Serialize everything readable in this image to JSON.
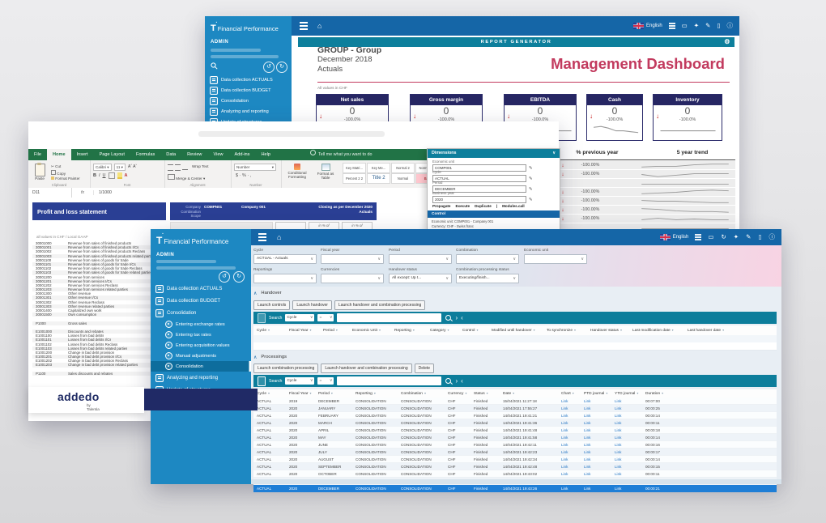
{
  "dashboard": {
    "sidebar": {
      "brand": "Financial Performance",
      "user": "ADMIN",
      "items": [
        "Data collection ACTUALS",
        "Data collection BUDGET",
        "Consolidation",
        "Analyzing and reporting",
        "Update of structures"
      ]
    },
    "topbar": {
      "language": "English",
      "icons": [
        "display-icon",
        "pin-icon",
        "edit-icon",
        "mobile-icon",
        "info-icon"
      ]
    },
    "banner": {
      "title": "REPORT GENERATOR",
      "gear_icon": "gear-icon"
    },
    "report": {
      "line1": "GROUP - Group",
      "line2": "December 2018",
      "line3": "Actuals",
      "title": "Management Dashboard",
      "note": "All values in CHF",
      "kpis": [
        {
          "label": "Net sales",
          "value": "0",
          "change": "-100.0%",
          "arrow": "↓",
          "spark": "2,6 12,5 22,6 32,6 42,7 52,7 58,7"
        },
        {
          "label": "Gross margin",
          "value": "0",
          "change": "-100.0%",
          "arrow": "↓",
          "spark": "2,5 12,6 22,5 32,6 42,6 52,7 58,7"
        },
        {
          "label": "EBITDA",
          "value": "0",
          "change": "-100.0%",
          "arrow": "↓",
          "spark": "2,6 12,6 22,5 32,6 42,7 52,7 58,7"
        },
        {
          "label": "Cash",
          "value": "0",
          "change": "-100.0%",
          "arrow": "↓",
          "spark": "2,3 11,2 20,4 29,7 38,7 47,8 56,9"
        },
        {
          "label": "Inventory",
          "value": "0",
          "change": "-100.0%",
          "arrow": "↓",
          "spark": "2,7 11,7 20,7 29,7 38,7 47,7 56,7"
        }
      ]
    },
    "trend": {
      "col1": "% previous year",
      "col2": "5 year trend",
      "rows": [
        {
          "arrow": "↓",
          "pct": "-100.00%",
          "spark": "2,7 20,6 40,6 60,4 80,3 98,3"
        },
        {
          "arrow": "↓",
          "pct": "-100.00%",
          "spark": "2,5 20,8 40,6 60,4 80,4 98,4"
        },
        {
          "arrow": "",
          "pct": "",
          "spark": "2,6 20,6 40,6 60,6 80,6 98,6"
        },
        {
          "arrow": "↓",
          "pct": "-100.00%",
          "spark": "2,7 20,6 40,5 60,3 80,2 98,3"
        },
        {
          "arrow": "↓",
          "pct": "-100.00%",
          "spark": "2,4 20,5 40,5 60,6 80,7 98,7"
        },
        {
          "arrow": "↓",
          "pct": "-100.00%",
          "spark": "2,3 20,4 40,6 60,7 80,7 98,8"
        },
        {
          "arrow": "↓",
          "pct": "-100.00%",
          "spark": "2,6 20,4 40,6 60,5 80,6 98,6"
        },
        {
          "arrow": "",
          "pct": "",
          "spark": "2,6 20,6 40,6 60,6 80,6 98,6"
        }
      ]
    },
    "taskpane": {
      "title": "Dimensions",
      "fields": [
        {
          "label": "Economic unit",
          "value": "COMP001"
        },
        {
          "label": "Cycle",
          "value": "ACTUAL"
        },
        {
          "label": "Period",
          "value": "DECEMBER"
        },
        {
          "label": "Business year",
          "value": "2020"
        }
      ],
      "actions": [
        "Propagate",
        "Execute",
        "Duplicate",
        "|",
        "Modules.call"
      ],
      "control_title": "Control",
      "control_lines": [
        "Economic unit: COMP001 - Company 001",
        "Currency: CHF - Swiss franc"
      ]
    }
  },
  "excel": {
    "tabs": [
      "File",
      "Home",
      "Insert",
      "Page Layout",
      "Formulas",
      "Data",
      "Review",
      "View",
      "Add-ins",
      "Help"
    ],
    "tellme": "Tell me what you want to do",
    "clipboard": {
      "paste": "Paste",
      "cut": "Cut",
      "copy": "Copy",
      "painter": "Format Painter",
      "label": "Clipboard"
    },
    "font": {
      "name": "Calibri",
      "size": "11",
      "label": "Font"
    },
    "align": {
      "wrap": "Wrap Text",
      "merge": "Merge & Center",
      "label": "Alignment"
    },
    "number": {
      "format": "Number",
      "symbols": "$ · % · ,",
      "label": "Number"
    },
    "styles": {
      "cond": "Conditional Formatting",
      "table": "Format as Table",
      "gallery1": [
        "Key Matri...",
        "Key Me...",
        "Normal 2",
        "Normal 2 2",
        "Percent 2"
      ],
      "gallery2": [
        "Percent 2 2",
        "Title 2",
        "Normal",
        "Bad",
        "Good"
      ]
    },
    "name_box": "D11",
    "formula": "1/1000",
    "sheet": {
      "title": "Profit and loss statement",
      "labels": [
        "Company",
        "Combination",
        "Scope"
      ],
      "company_code": "COMPN01",
      "company_name": "Company 001",
      "closing": "Closing as per December 2020",
      "scenario": "Actuals",
      "pct_col1": "in % of",
      "pct_col2": "in % of",
      "note": "all values in CHF / Local GAAP",
      "rows": [
        {
          "code": "30001000",
          "desc": "Revenue from sales of finished products"
        },
        {
          "code": "30001001",
          "desc": "Revenue from sales of finished products I/Cs"
        },
        {
          "code": "30001002",
          "desc": "Revenue from sales of finished products Reclass"
        },
        {
          "code": "30001003",
          "desc": "Revenue from sales of finished products related parties"
        },
        {
          "code": "30001100",
          "desc": "Revenue from sales of goods for trade"
        },
        {
          "code": "30001101",
          "desc": "Revenue from sales of goods for trade I/Cs"
        },
        {
          "code": "30001102",
          "desc": "Revenue from sales of goods for trade Reclass"
        },
        {
          "code": "30001103",
          "desc": "Revenue from sales of goods for trade related parties"
        },
        {
          "code": "30001200",
          "desc": "Revenue from services"
        },
        {
          "code": "30001201",
          "desc": "Revenue from services I/Cs"
        },
        {
          "code": "30001202",
          "desc": "Revenue from services Reclass"
        },
        {
          "code": "30001203",
          "desc": "Revenue from services related parties"
        },
        {
          "code": "30001300",
          "desc": "Other revenue"
        },
        {
          "code": "30001301",
          "desc": "Other revenue I/Cs"
        },
        {
          "code": "30001302",
          "desc": "Other revenue Reclass"
        },
        {
          "code": "30001303",
          "desc": "Other revenue related parties"
        },
        {
          "code": "30001400",
          "desc": "Capitalized own work"
        },
        {
          "code": "30001500",
          "desc": "Own consumption"
        },
        {
          "code": "",
          "desc": ""
        },
        {
          "code": "P1000",
          "desc": "Gross sales"
        },
        {
          "code": "",
          "desc": ""
        },
        {
          "code": "E1001000",
          "desc": "Discounts and rebates"
        },
        {
          "code": "E1001100",
          "desc": "Losses from bad debts"
        },
        {
          "code": "E1001101",
          "desc": "Losses from bad debts I/Cs"
        },
        {
          "code": "E1001102",
          "desc": "Losses from bad debts Reclass"
        },
        {
          "code": "E1001103",
          "desc": "Losses from bad debts related parties"
        },
        {
          "code": "E1001200",
          "desc": "Change in bad debt provision"
        },
        {
          "code": "E1001201",
          "desc": "Change in bad debt provision I/Cs"
        },
        {
          "code": "E1001202",
          "desc": "Change in bad debt provision Reclass"
        },
        {
          "code": "E1001203",
          "desc": "Change in bad debt provision related parties"
        },
        {
          "code": "",
          "desc": ""
        },
        {
          "code": "P1100",
          "desc": "Sales discounts and rebates"
        }
      ]
    },
    "logo": {
      "name": "addedo",
      "by": "by Talentia"
    }
  },
  "consol": {
    "sidebar": {
      "brand": "Financial Performance",
      "user": "ADMIN",
      "items": [
        "Data collection ACTUALS",
        "Data collection BUDGET",
        "Consolidation"
      ],
      "subs": [
        "Entering exchange rates",
        "Entering tax rates",
        "Entering acquisition values",
        "Manual adjustments",
        "Consolidation"
      ],
      "items2": [
        "Analyzing and reporting",
        "Update of structures"
      ]
    },
    "topbar": {
      "language": "English",
      "icons": [
        "display-icon",
        "refresh-icon",
        "pin-icon",
        "edit-icon",
        "mobile-icon",
        "info-icon"
      ]
    },
    "filters1": [
      {
        "label": "Cycle",
        "value": "ACTUAL - Actuals"
      },
      {
        "label": "Fiscal year",
        "value": ""
      },
      {
        "label": "Period",
        "value": ""
      },
      {
        "label": "Combination",
        "value": ""
      },
      {
        "label": "Economic unit",
        "value": ""
      }
    ],
    "filters2": [
      {
        "label": "Reportings",
        "value": ""
      },
      {
        "label": "Currencies",
        "value": ""
      },
      {
        "label": "Handover status",
        "value": "All except: Up t..."
      },
      {
        "label": "Combination processing status",
        "value": "Executing/finish..."
      }
    ],
    "handover": {
      "title": "Handover",
      "buttons": [
        "Launch controls",
        "Launch handover",
        "Launch handover and combination processing"
      ],
      "search_label": "Search",
      "search_field": "Cycle",
      "search_op": "=",
      "columns": [
        "Cycle",
        "Fiscal Year",
        "Period",
        "Economic Unit",
        "Reporting",
        "Category",
        "Control",
        "Modified until handover",
        "To synchronize",
        "Handover status",
        "Last modification date",
        "Last handover date"
      ]
    },
    "processings": {
      "title": "Processings",
      "buttons": [
        "Launch combination processing",
        "Launch handover and combination processing",
        "Delete"
      ],
      "search_label": "Search",
      "search_field": "Cycle",
      "search_op": "=",
      "columns": [
        "Cycle",
        "Fiscal Year",
        "Period",
        "Reporting",
        "Combination",
        "Currency",
        "Status",
        "Date",
        "Chart",
        "PTD journal",
        "YTD journal",
        "Duration"
      ],
      "rows": [
        [
          "ACTUAL",
          "2019",
          "DECEMBER",
          "CONSOLIDATION",
          "CONSOLIDATION",
          "CHF",
          "Finished",
          "15/04/2021 11:27:18",
          "Link",
          "Link",
          "Link",
          "00:07:00"
        ],
        [
          "ACTUAL",
          "2020",
          "JANUARY",
          "CONSOLIDATION",
          "CONSOLIDATION",
          "CHF",
          "Finished",
          "14/04/2021 17:55:27",
          "Link",
          "Link",
          "Link",
          "00:00:25"
        ],
        [
          "ACTUAL",
          "2020",
          "FEBRUARY",
          "CONSOLIDATION",
          "CONSOLIDATION",
          "CHF",
          "Finished",
          "14/04/2021 19:41:21",
          "Link",
          "Link",
          "Link",
          "00:00:14"
        ],
        [
          "ACTUAL",
          "2020",
          "MARCH",
          "CONSOLIDATION",
          "CONSOLIDATION",
          "CHF",
          "Finished",
          "14/04/2021 19:41:36",
          "Link",
          "Link",
          "Link",
          "00:00:11"
        ],
        [
          "ACTUAL",
          "2020",
          "APRIL",
          "CONSOLIDATION",
          "CONSOLIDATION",
          "CHF",
          "Finished",
          "14/04/2021 19:41:48",
          "Link",
          "Link",
          "Link",
          "00:00:18"
        ],
        [
          "ACTUAL",
          "2020",
          "MAY",
          "CONSOLIDATION",
          "CONSOLIDATION",
          "CHF",
          "Finished",
          "14/04/2021 19:41:58",
          "Link",
          "Link",
          "Link",
          "00:00:14"
        ],
        [
          "ACTUAL",
          "2020",
          "JUNE",
          "CONSOLIDATION",
          "CONSOLIDATION",
          "CHF",
          "Finished",
          "14/04/2021 19:42:11",
          "Link",
          "Link",
          "Link",
          "00:00:16"
        ],
        [
          "ACTUAL",
          "2020",
          "JULY",
          "CONSOLIDATION",
          "CONSOLIDATION",
          "CHF",
          "Finished",
          "14/04/2021 19:42:23",
          "Link",
          "Link",
          "Link",
          "00:00:17"
        ],
        [
          "ACTUAL",
          "2020",
          "AUGUST",
          "CONSOLIDATION",
          "CONSOLIDATION",
          "CHF",
          "Finished",
          "14/04/2021 19:42:34",
          "Link",
          "Link",
          "Link",
          "00:00:14"
        ],
        [
          "ACTUAL",
          "2020",
          "SEPTEMBER",
          "CONSOLIDATION",
          "CONSOLIDATION",
          "CHF",
          "Finished",
          "14/04/2021 19:42:48",
          "Link",
          "Link",
          "Link",
          "00:00:15"
        ],
        [
          "ACTUAL",
          "2020",
          "OCTOBER",
          "CONSOLIDATION",
          "CONSOLIDATION",
          "CHF",
          "Finished",
          "14/04/2021 19:43:02",
          "Link",
          "Link",
          "Link",
          "00:00:11"
        ],
        [
          "ACTUAL",
          "2020",
          "NOVEMBER",
          "CONSOLIDATION",
          "CONSOLIDATION",
          "CHF",
          "Finished",
          "14/04/2021 19:43:13",
          "Link",
          "Link",
          "Link",
          "00:00:20"
        ],
        [
          "ACTUAL",
          "2020",
          "DECEMBER",
          "CONSOLIDATION",
          "CONSOLIDATION",
          "CHF",
          "Finished",
          "14/04/2021 19:43:26",
          "Link",
          "Link",
          "Link",
          "00:00:21"
        ]
      ]
    }
  }
}
